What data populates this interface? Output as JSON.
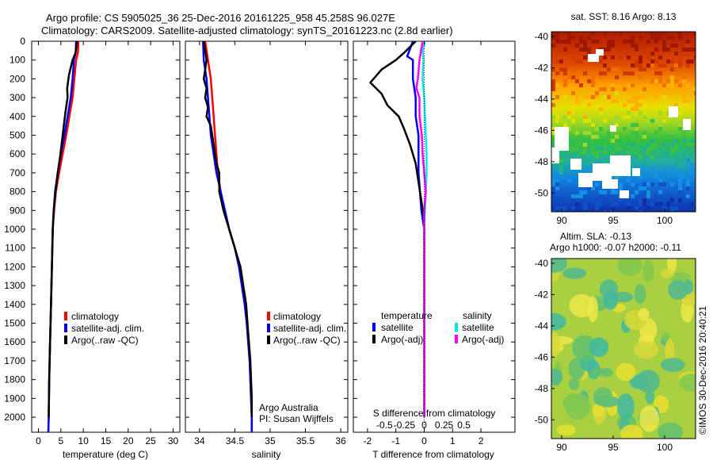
{
  "header": {
    "title_line1": "Argo profile: CS 5905025_36 25-Dec-2016 20161225_958 45.258S 96.027E",
    "title_line2": "Climatology: CARS2009. Satellite-adjusted climatology: synTS_20161223.nc (2.8d earlier)"
  },
  "colors": {
    "climatology": "#ff0000",
    "satellite_adj": "#0000ff",
    "argo": "#000000",
    "sat_salinity": "#00e8e8",
    "argo_salinity": "#ff00ff"
  },
  "depth_axis": {
    "ticks": [
      "0",
      "100",
      "200",
      "300",
      "400",
      "500",
      "600",
      "700",
      "800",
      "900",
      "1000",
      "1100",
      "1200",
      "1300",
      "1400",
      "1500",
      "1600",
      "1700",
      "1800",
      "1900",
      "2000"
    ],
    "range": [
      0,
      2080
    ]
  },
  "chart_data": [
    {
      "id": "temperature",
      "type": "line",
      "xlabel": "temperature (deg C)",
      "xlim": [
        -1.5,
        31.5
      ],
      "xticks": [
        "0",
        "5",
        "10",
        "15",
        "20",
        "25",
        "30"
      ],
      "xtick_values": [
        0,
        5,
        10,
        15,
        20,
        25,
        30
      ],
      "legend": [
        "climatology",
        "satellite-adj. clim.",
        "Argo(..raw -QC)"
      ],
      "legend_position": "lower-left",
      "series": [
        {
          "name": "climatology",
          "color": "#ff0000",
          "points": [
            [
              8.9,
              0
            ],
            [
              8.8,
              60
            ],
            [
              8.4,
              100
            ],
            [
              8.0,
              200
            ],
            [
              7.6,
              300
            ],
            [
              6.9,
              400
            ],
            [
              6.2,
              500
            ],
            [
              5.4,
              600
            ],
            [
              4.6,
              700
            ],
            [
              3.9,
              800
            ],
            [
              3.5,
              900
            ],
            [
              3.2,
              1000
            ],
            [
              3.0,
              1200
            ],
            [
              2.8,
              1400
            ],
            [
              2.6,
              1600
            ],
            [
              2.4,
              1800
            ],
            [
              2.3,
              2000
            ],
            [
              2.2,
              2080
            ]
          ]
        },
        {
          "name": "satellite-adj. clim.",
          "color": "#0000ff",
          "points": [
            [
              8.4,
              0
            ],
            [
              8.3,
              60
            ],
            [
              7.9,
              100
            ],
            [
              7.6,
              200
            ],
            [
              7.2,
              300
            ],
            [
              6.5,
              400
            ],
            [
              5.8,
              500
            ],
            [
              5.0,
              600
            ],
            [
              4.3,
              700
            ],
            [
              3.7,
              800
            ],
            [
              3.4,
              900
            ],
            [
              3.2,
              1000
            ],
            [
              3.0,
              1200
            ],
            [
              2.8,
              1400
            ],
            [
              2.6,
              1600
            ],
            [
              2.4,
              1800
            ],
            [
              2.3,
              2000
            ],
            [
              2.2,
              2080
            ]
          ]
        },
        {
          "name": "Argo(..raw -QC)",
          "color": "#000000",
          "points": [
            [
              8.6,
              0
            ],
            [
              8.3,
              60
            ],
            [
              7.6,
              100
            ],
            [
              6.8,
              180
            ],
            [
              6.4,
              250
            ],
            [
              6.5,
              300
            ],
            [
              6.0,
              380
            ],
            [
              5.7,
              440
            ],
            [
              5.4,
              500
            ],
            [
              4.9,
              600
            ],
            [
              4.3,
              700
            ],
            [
              3.8,
              800
            ],
            [
              3.4,
              900
            ],
            [
              3.2,
              1000
            ],
            [
              3.0,
              1200
            ],
            [
              2.8,
              1400
            ],
            [
              2.6,
              1600
            ],
            [
              2.4,
              1800
            ],
            [
              2.3,
              2000
            ]
          ]
        }
      ]
    },
    {
      "id": "salinity",
      "type": "line",
      "xlabel": "salinity",
      "xlim": [
        33.8,
        36.1
      ],
      "xticks": [
        "34",
        "34.5",
        "35",
        "35.5",
        "36"
      ],
      "xtick_values": [
        34,
        34.5,
        35,
        35.5,
        36
      ],
      "legend": [
        "climatology",
        "satellite-adj. clim.",
        "Argo(..raw -QC)"
      ],
      "legend_position": "lower-right",
      "annotation": [
        "Argo Australia",
        "PI: Susan Wijffels"
      ],
      "series": [
        {
          "name": "climatology",
          "color": "#ff0000",
          "points": [
            [
              34.08,
              0
            ],
            [
              34.12,
              100
            ],
            [
              34.16,
              200
            ],
            [
              34.18,
              300
            ],
            [
              34.2,
              400
            ],
            [
              34.22,
              500
            ],
            [
              34.24,
              600
            ],
            [
              34.26,
              700
            ],
            [
              34.3,
              800
            ],
            [
              34.36,
              900
            ],
            [
              34.42,
              1000
            ],
            [
              34.5,
              1100
            ],
            [
              34.56,
              1200
            ],
            [
              34.6,
              1300
            ],
            [
              34.64,
              1400
            ],
            [
              34.67,
              1500
            ],
            [
              34.69,
              1600
            ],
            [
              34.71,
              1700
            ],
            [
              34.72,
              1800
            ],
            [
              34.73,
              1900
            ],
            [
              34.74,
              2000
            ],
            [
              34.74,
              2080
            ]
          ]
        },
        {
          "name": "satellite-adj. clim.",
          "color": "#0000ff",
          "points": [
            [
              34.05,
              0
            ],
            [
              34.06,
              100
            ],
            [
              34.1,
              200
            ],
            [
              34.12,
              300
            ],
            [
              34.14,
              400
            ],
            [
              34.16,
              500
            ],
            [
              34.2,
              600
            ],
            [
              34.24,
              700
            ],
            [
              34.3,
              800
            ],
            [
              34.36,
              900
            ],
            [
              34.42,
              1000
            ],
            [
              34.5,
              1100
            ],
            [
              34.56,
              1200
            ],
            [
              34.6,
              1300
            ],
            [
              34.64,
              1400
            ],
            [
              34.67,
              1500
            ],
            [
              34.69,
              1600
            ],
            [
              34.71,
              1700
            ],
            [
              34.72,
              1800
            ],
            [
              34.73,
              1900
            ],
            [
              34.74,
              2000
            ],
            [
              34.74,
              2080
            ]
          ]
        },
        {
          "name": "Argo(..raw -QC)",
          "color": "#000000",
          "points": [
            [
              34.06,
              0
            ],
            [
              34.08,
              50
            ],
            [
              34.1,
              100
            ],
            [
              34.08,
              150
            ],
            [
              34.06,
              200
            ],
            [
              34.1,
              250
            ],
            [
              34.08,
              300
            ],
            [
              34.12,
              350
            ],
            [
              34.1,
              400
            ],
            [
              34.16,
              450
            ],
            [
              34.18,
              500
            ],
            [
              34.2,
              550
            ],
            [
              34.22,
              600
            ],
            [
              34.24,
              650
            ],
            [
              34.28,
              700
            ],
            [
              34.28,
              800
            ],
            [
              34.34,
              900
            ],
            [
              34.42,
              1000
            ],
            [
              34.5,
              1100
            ],
            [
              34.58,
              1200
            ],
            [
              34.62,
              1300
            ],
            [
              34.66,
              1400
            ],
            [
              34.68,
              1500
            ],
            [
              34.7,
              1600
            ],
            [
              34.72,
              1700
            ],
            [
              34.73,
              1800
            ],
            [
              34.74,
              1900
            ],
            [
              34.74,
              2000
            ]
          ]
        }
      ]
    },
    {
      "id": "difference",
      "type": "line",
      "xlabel": "T difference from climatology",
      "xlabel_top": "S difference from climatology",
      "xlim": [
        -2.5,
        3.2
      ],
      "xticks": [
        "-2",
        "-1",
        "0",
        "1",
        "2"
      ],
      "xtick_values": [
        -2,
        -1,
        0,
        1,
        2
      ],
      "xticks_top": [
        "-0.5",
        "-0.25",
        "0",
        "0.25",
        "0.5"
      ],
      "xtick_top_values": [
        -0.5,
        -0.25,
        0,
        0.25,
        0.5
      ],
      "legend_left_header": "temperature",
      "legend_right_header": "salinity",
      "legend": [
        "satellite",
        "Argo(-adj)",
        "satellite",
        "Argo(-adj)"
      ],
      "series": [
        {
          "name": "satellite",
          "quantity": "temperature",
          "color": "#0000ff",
          "points": [
            [
              -0.4,
              0
            ],
            [
              -0.6,
              80
            ],
            [
              -0.4,
              100
            ],
            [
              -0.4,
              200
            ],
            [
              -0.3,
              300
            ],
            [
              -0.3,
              400
            ],
            [
              -0.2,
              500
            ],
            [
              -0.2,
              700
            ],
            [
              -0.1,
              900
            ],
            [
              0,
              1000
            ],
            [
              0,
              1500
            ],
            [
              0,
              2000
            ]
          ]
        },
        {
          "name": "Argo(-adj)",
          "quantity": "temperature",
          "color": "#000000",
          "points": [
            [
              -0.3,
              0
            ],
            [
              -0.7,
              60
            ],
            [
              -1.0,
              100
            ],
            [
              -1.5,
              150
            ],
            [
              -1.9,
              220
            ],
            [
              -1.5,
              280
            ],
            [
              -1.3,
              340
            ],
            [
              -0.9,
              400
            ],
            [
              -0.7,
              470
            ],
            [
              -0.5,
              550
            ],
            [
              -0.3,
              650
            ],
            [
              -0.2,
              750
            ],
            [
              -0.1,
              850
            ],
            [
              0,
              950
            ],
            [
              0,
              1100
            ],
            [
              0,
              1500
            ],
            [
              0,
              2000
            ]
          ]
        },
        {
          "name": "satellite",
          "quantity": "salinity",
          "color": "#00e8e8",
          "points": [
            [
              0.01,
              0
            ],
            [
              -0.02,
              50
            ],
            [
              -0.01,
              100
            ],
            [
              -0.02,
              200
            ],
            [
              0,
              300
            ],
            [
              0.01,
              400
            ],
            [
              0.02,
              500
            ],
            [
              0.03,
              600
            ],
            [
              0.03,
              700
            ],
            [
              0.02,
              800
            ],
            [
              0.01,
              900
            ],
            [
              0,
              1000
            ],
            [
              0,
              1500
            ],
            [
              0,
              2000
            ]
          ]
        },
        {
          "name": "Argo(-adj)",
          "quantity": "salinity",
          "color": "#ff00ff",
          "points": [
            [
              -0.02,
              0
            ],
            [
              -0.06,
              100
            ],
            [
              -0.08,
              200
            ],
            [
              -0.1,
              250
            ],
            [
              -0.06,
              300
            ],
            [
              -0.06,
              400
            ],
            [
              -0.03,
              500
            ],
            [
              -0.02,
              600
            ],
            [
              0,
              700
            ],
            [
              0.02,
              800
            ],
            [
              0,
              900
            ],
            [
              0,
              1000
            ],
            [
              0,
              1500
            ],
            [
              0,
              2000
            ]
          ]
        }
      ]
    },
    {
      "id": "sst_map",
      "type": "heatmap",
      "title": "sat. SST: 8.16  Argo: 8.13",
      "xticks": [
        "90",
        "95",
        "100"
      ],
      "xtick_values": [
        90,
        95,
        100
      ],
      "yticks": [
        "-40",
        "-42",
        "-44",
        "-46",
        "-48",
        "-50"
      ],
      "ytick_values": [
        -40,
        -42,
        -44,
        -46,
        -48,
        -50
      ],
      "xlim": [
        89,
        103
      ],
      "ylim": [
        -51.2,
        -39.7
      ]
    },
    {
      "id": "sla_map",
      "type": "heatmap",
      "title": "Altim. SLA: -0.13",
      "title_line2": "Argo h1000: -0.07 h2000: -0.11",
      "xticks": [
        "90",
        "95",
        "100"
      ],
      "xtick_values": [
        90,
        95,
        100
      ],
      "yticks": [
        "-40",
        "-42",
        "-44",
        "-46",
        "-48",
        "-50"
      ],
      "ytick_values": [
        -40,
        -42,
        -44,
        -46,
        -48,
        -50
      ],
      "xlim": [
        89,
        103
      ],
      "ylim": [
        -51.2,
        -39.7
      ]
    }
  ],
  "credit": "©IMOS 30-Dec-2016 20:40:21"
}
